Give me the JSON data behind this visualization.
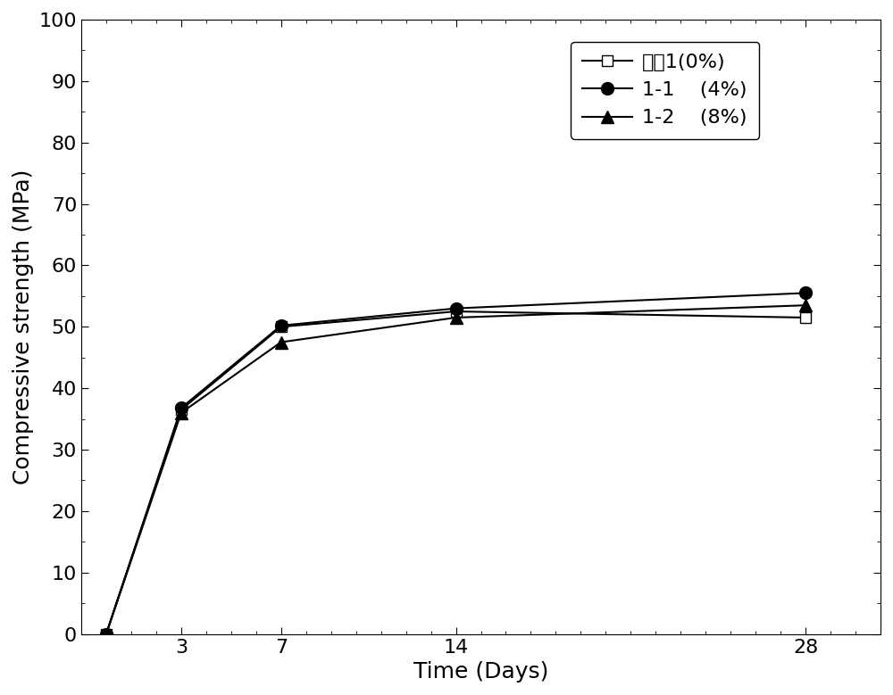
{
  "x": [
    0,
    3,
    7,
    14,
    28
  ],
  "series": [
    {
      "label": "试件1(0%)",
      "y": [
        0,
        36.5,
        50.0,
        52.5,
        51.5
      ],
      "marker": "s",
      "markersize": 9,
      "markerfacecolor": "white",
      "markeredgecolor": "black",
      "color": "black",
      "linewidth": 1.5
    },
    {
      "label": "1-1    (4%)",
      "y": [
        0,
        36.8,
        50.2,
        53.0,
        55.5
      ],
      "marker": "o",
      "markersize": 10,
      "markerfacecolor": "black",
      "markeredgecolor": "black",
      "color": "black",
      "linewidth": 1.5
    },
    {
      "label": "1-2    (8%)",
      "y": [
        0,
        36.0,
        47.5,
        51.5,
        53.5
      ],
      "marker": "^",
      "markersize": 10,
      "markerfacecolor": "black",
      "markeredgecolor": "black",
      "color": "black",
      "linewidth": 1.5
    }
  ],
  "xlabel": "Time (Days)",
  "ylabel": "Compressive strength (MPa)",
  "xlim": [
    -1.0,
    31
  ],
  "ylim": [
    0,
    100
  ],
  "xticks": [
    3,
    7,
    14,
    28
  ],
  "yticks": [
    0,
    10,
    20,
    30,
    40,
    50,
    60,
    70,
    80,
    90,
    100
  ],
  "font_size": 16,
  "tick_font_size": 16,
  "label_font_size": 18
}
